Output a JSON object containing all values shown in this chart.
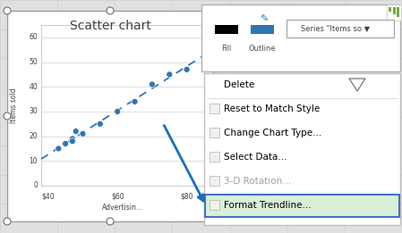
{
  "fig_width": 4.49,
  "fig_height": 2.61,
  "dpi": 100,
  "bg_color": "#e0e0e0",
  "chart_title": "Scatter chart",
  "chart_title_color": "#404040",
  "chart_title_fontsize": 10,
  "scatter_x": [
    43,
    45,
    47,
    47,
    48,
    50,
    55,
    60,
    65,
    70,
    75,
    80
  ],
  "scatter_y": [
    15,
    17,
    19,
    18,
    22,
    21,
    25,
    30,
    34,
    41,
    45,
    47
  ],
  "scatter_color": "#2e75b6",
  "trendline_color": "#2e75b6",
  "xlabel": "Advertisin...",
  "ylabel": "Items sold",
  "x_ticks": [
    40,
    60,
    80
  ],
  "x_tick_labels": [
    "$40",
    "$60",
    "$80"
  ],
  "y_ticks": [
    0,
    10,
    20,
    30,
    40,
    50,
    60
  ],
  "ylim": [
    0,
    65
  ],
  "xlim": [
    38,
    85
  ],
  "grid_color": "#d0d0d0",
  "menu_items": [
    "Delete",
    "Reset to Match Style",
    "Change Chart Type...",
    "Select Data...",
    "3-D Rotation...",
    "Format Trendline..."
  ],
  "menu_item_colors": [
    "#000000",
    "#000000",
    "#000000",
    "#000000",
    "#a0a0a0",
    "#000000"
  ],
  "menu_highlight_item": "Format Trendline...",
  "menu_highlight_bg": "#d8f0d8",
  "menu_highlight_border": "#4472c4",
  "fill_label": "Fill",
  "outline_label": "Outline",
  "series_label": "Series \"Items so",
  "arrow_color": "#1a6ec0",
  "cell_grid_color": "#d0d0d0"
}
